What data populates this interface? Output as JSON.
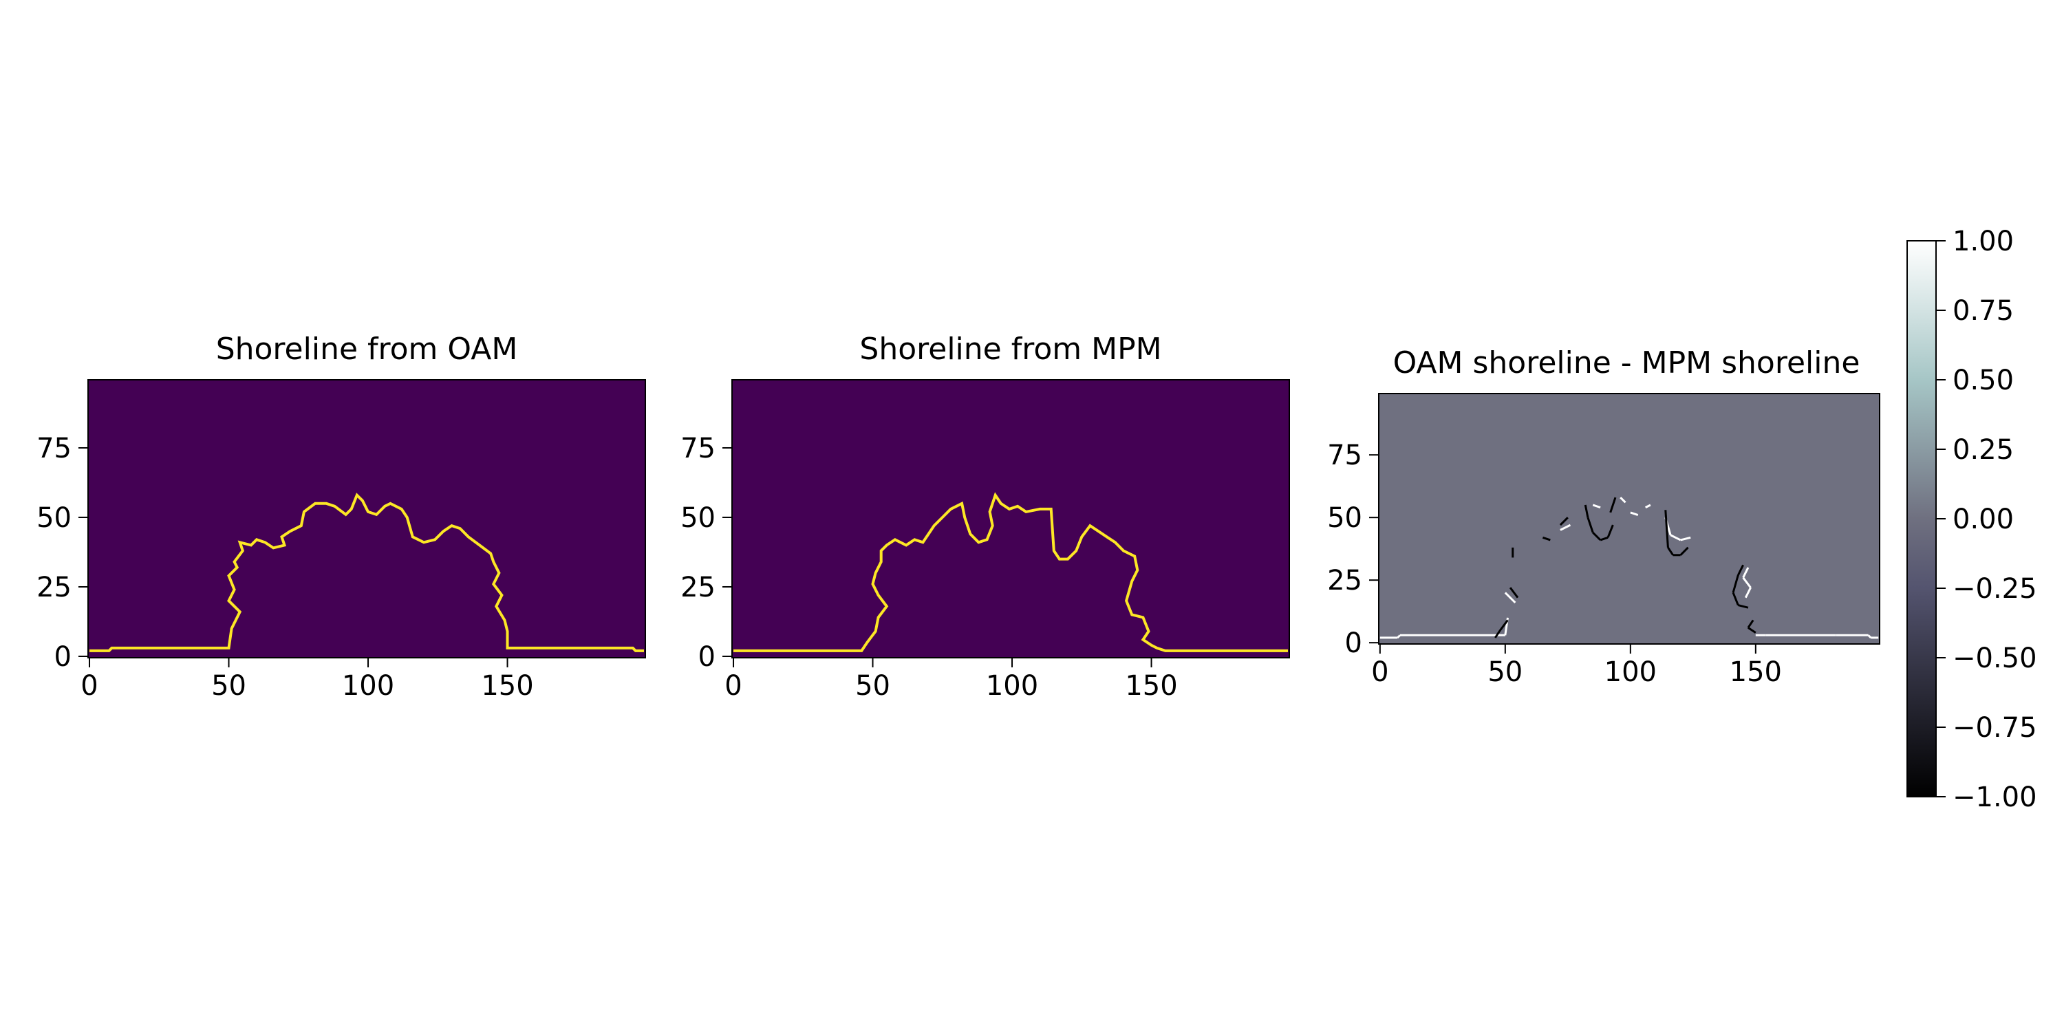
{
  "chart_data": [
    {
      "type": "heatmap",
      "title": "Shoreline from OAM",
      "xlabel": "",
      "ylabel": "",
      "image_shape": [
        100,
        200
      ],
      "xlim": [
        -0.5,
        199.5
      ],
      "ylim": [
        99.5,
        -0.5
      ],
      "xticks": [
        0,
        50,
        100,
        150
      ],
      "yticks": [
        0,
        25,
        50,
        75
      ],
      "colormap": "viridis",
      "background_value": 0,
      "line_value": 1,
      "background_color": "#440154",
      "line_color": "#fde725",
      "shoreline": [
        [
          0,
          2
        ],
        [
          7,
          2
        ],
        [
          8,
          3
        ],
        [
          50,
          3
        ],
        [
          51,
          10
        ],
        [
          54,
          16
        ],
        [
          50,
          20
        ],
        [
          52,
          24
        ],
        [
          50,
          29
        ],
        [
          53,
          32
        ],
        [
          52,
          34
        ],
        [
          55,
          38
        ],
        [
          54,
          41
        ],
        [
          58,
          40
        ],
        [
          60,
          42
        ],
        [
          63,
          41
        ],
        [
          66,
          39
        ],
        [
          70,
          40
        ],
        [
          69,
          43
        ],
        [
          72,
          45
        ],
        [
          76,
          47
        ],
        [
          77,
          52
        ],
        [
          81,
          55
        ],
        [
          85,
          55
        ],
        [
          88,
          54
        ],
        [
          92,
          51
        ],
        [
          94,
          53
        ],
        [
          96,
          58
        ],
        [
          98,
          56
        ],
        [
          100,
          52
        ],
        [
          103,
          51
        ],
        [
          106,
          54
        ],
        [
          108,
          55
        ],
        [
          112,
          53
        ],
        [
          114,
          50
        ],
        [
          116,
          43
        ],
        [
          120,
          41
        ],
        [
          124,
          42
        ],
        [
          127,
          45
        ],
        [
          130,
          47
        ],
        [
          133,
          46
        ],
        [
          136,
          43
        ],
        [
          140,
          40
        ],
        [
          144,
          37
        ],
        [
          145,
          34
        ],
        [
          147,
          30
        ],
        [
          145,
          26
        ],
        [
          148,
          22
        ],
        [
          146,
          18
        ],
        [
          149,
          13
        ],
        [
          150,
          9
        ],
        [
          150,
          3
        ],
        [
          154,
          3
        ],
        [
          182,
          3
        ],
        [
          195,
          3
        ],
        [
          196,
          2
        ],
        [
          199,
          2
        ]
      ]
    },
    {
      "type": "heatmap",
      "title": "Shoreline from MPM",
      "xlabel": "",
      "ylabel": "",
      "image_shape": [
        100,
        200
      ],
      "xlim": [
        -0.5,
        199.5
      ],
      "ylim": [
        99.5,
        -0.5
      ],
      "xticks": [
        0,
        50,
        100,
        150
      ],
      "yticks": [
        0,
        25,
        50,
        75
      ],
      "colormap": "viridis",
      "background_value": 0,
      "line_value": 1,
      "background_color": "#440154",
      "line_color": "#fde725",
      "shoreline": [
        [
          0,
          2
        ],
        [
          46,
          2
        ],
        [
          48,
          5
        ],
        [
          51,
          9
        ],
        [
          52,
          14
        ],
        [
          55,
          18
        ],
        [
          52,
          22
        ],
        [
          50,
          26
        ],
        [
          51,
          30
        ],
        [
          53,
          34
        ],
        [
          53,
          38
        ],
        [
          55,
          40
        ],
        [
          58,
          42
        ],
        [
          62,
          40
        ],
        [
          65,
          42
        ],
        [
          68,
          41
        ],
        [
          70,
          44
        ],
        [
          72,
          47
        ],
        [
          75,
          50
        ],
        [
          78,
          53
        ],
        [
          82,
          55
        ],
        [
          83,
          50
        ],
        [
          85,
          44
        ],
        [
          88,
          41
        ],
        [
          91,
          42
        ],
        [
          93,
          47
        ],
        [
          92,
          52
        ],
        [
          94,
          58
        ],
        [
          96,
          55
        ],
        [
          99,
          53
        ],
        [
          102,
          54
        ],
        [
          105,
          52
        ],
        [
          110,
          53
        ],
        [
          114,
          53
        ],
        [
          115,
          38
        ],
        [
          117,
          35
        ],
        [
          120,
          35
        ],
        [
          123,
          38
        ],
        [
          125,
          43
        ],
        [
          128,
          47
        ],
        [
          131,
          45
        ],
        [
          134,
          43
        ],
        [
          137,
          41
        ],
        [
          140,
          38
        ],
        [
          144,
          36
        ],
        [
          145,
          31
        ],
        [
          143,
          27
        ],
        [
          141,
          20
        ],
        [
          143,
          15
        ],
        [
          147,
          14
        ],
        [
          149,
          9
        ],
        [
          147,
          6
        ],
        [
          150,
          4
        ],
        [
          152,
          3
        ],
        [
          155,
          2
        ],
        [
          199,
          2
        ]
      ]
    },
    {
      "type": "heatmap",
      "title": "OAM shoreline - MPM shoreline",
      "xlabel": "",
      "ylabel": "",
      "image_shape": [
        100,
        200
      ],
      "xlim": [
        -0.5,
        199.5
      ],
      "ylim": [
        99.5,
        -0.5
      ],
      "xticks": [
        0,
        50,
        100,
        150
      ],
      "yticks": [
        0,
        25,
        50,
        75
      ],
      "colormap": "bone",
      "background_value": 0,
      "colorbar": {
        "vmin": -1.0,
        "vmax": 1.0,
        "ticks": [
          "1.00",
          "0.75",
          "0.50",
          "0.25",
          "0.00",
          "−0.25",
          "−0.50",
          "−0.75",
          "−1.00"
        ]
      }
    }
  ]
}
